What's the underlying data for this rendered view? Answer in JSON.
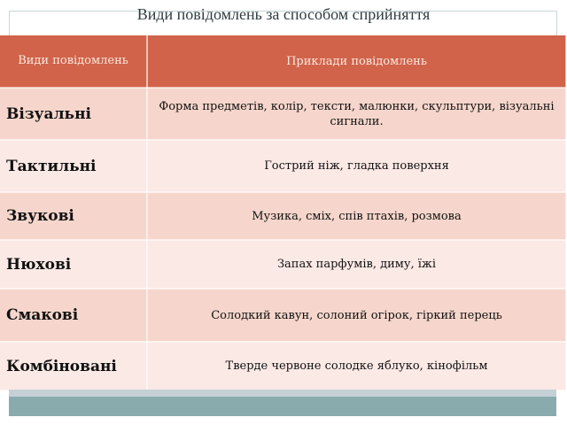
{
  "title": "Види повідомлень за способом сприйняття",
  "table": {
    "headers": [
      "Види повідомлень",
      "Приклади повідомлень"
    ],
    "rows": [
      {
        "type": "Візуальні",
        "examples": "Форма предметів, колір, тексти, малюнки, скульптури, візуальні сигнали."
      },
      {
        "type": "Тактильні",
        "examples": "Гострий ніж, гладка поверхня"
      },
      {
        "type": "Звукові",
        "examples": "Музика, сміх, спів птахів, розмова"
      },
      {
        "type": "Нюхові",
        "examples": "Запах парфумів, диму, їжі"
      },
      {
        "type": "Смакові",
        "examples": "Солодкий кавун, солоний огірок, гіркий перець"
      },
      {
        "type": "Комбіновані",
        "examples": "Тверде червоне солодке яблуко, кінофільм"
      }
    ]
  },
  "colors": {
    "header": "#d0634a",
    "row_odd": "#f6d6cc",
    "row_even": "#fbe9e5",
    "footer_bar": "#8aabae"
  }
}
